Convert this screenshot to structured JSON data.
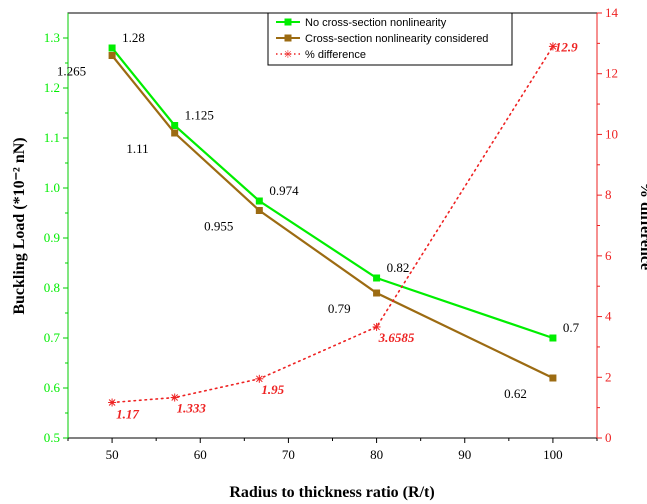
{
  "chart_data": {
    "type": "line",
    "xlabel": "Radius to thickness ratio (R/t)",
    "ylabel_left": "Buckling Load (*10⁻² nN)",
    "ylabel_right": "% difference",
    "xlim": [
      45,
      105
    ],
    "xticks": [
      50,
      60,
      70,
      80,
      90,
      100
    ],
    "ylim_left": [
      0.5,
      1.35
    ],
    "yticks_left": [
      "0.5",
      "0.6",
      "0.7",
      "0.8",
      "0.9",
      "1.0",
      "1.1",
      "1.2",
      "1.3"
    ],
    "ylim_right": [
      0,
      14
    ],
    "yticks_right": [
      "0",
      "2",
      "4",
      "6",
      "8",
      "10",
      "12",
      "14"
    ],
    "x": [
      50,
      57.1,
      66.7,
      80,
      100
    ],
    "series": [
      {
        "name": "No cross-section nonlinearity",
        "axis": "left",
        "color": "#00ee00",
        "values": [
          1.28,
          1.125,
          0.974,
          0.82,
          0.7
        ],
        "labels": [
          "1.28",
          "1.125",
          "0.974",
          "0.82",
          "0.7"
        ]
      },
      {
        "name": "Cross-section nonlinearity considered",
        "axis": "left",
        "color": "#9c6b12",
        "values": [
          1.265,
          1.11,
          0.955,
          0.79,
          0.62
        ],
        "labels": [
          "1.265",
          "1.11",
          "0.955",
          "0.79",
          "0.62"
        ]
      },
      {
        "name": "% difference",
        "axis": "right",
        "color": "#ee2222",
        "values": [
          1.17,
          1.333,
          1.95,
          3.6585,
          12.9
        ],
        "labels": [
          "1.17",
          "1.333",
          "1.95",
          "3.6585",
          "12.9"
        ]
      }
    ],
    "legend_position": "top-right",
    "grid": false
  }
}
